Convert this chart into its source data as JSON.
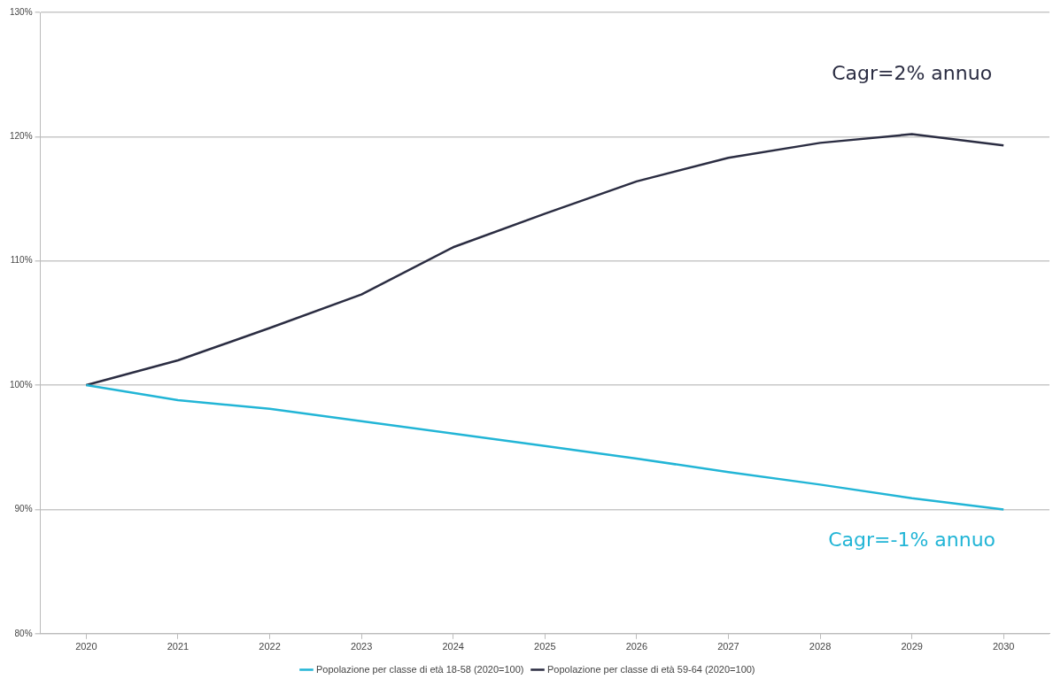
{
  "chart_data": {
    "type": "line",
    "categories": [
      "2020",
      "2021",
      "2022",
      "2023",
      "2024",
      "2025",
      "2026",
      "2027",
      "2028",
      "2029",
      "2030"
    ],
    "series": [
      {
        "name": "Popolazione per classe di età 18-58 (2020=100)",
        "color": "#22b5d6",
        "values": [
          100,
          98.8,
          98.1,
          97.1,
          96.1,
          95.1,
          94.1,
          93.0,
          92.0,
          90.9,
          90.0
        ]
      },
      {
        "name": "Popolazione per classe di età 59-64 (2020=100)",
        "color": "#2b2d42",
        "values": [
          100,
          102.0,
          104.6,
          107.3,
          111.1,
          113.8,
          116.4,
          118.3,
          119.5,
          120.2,
          119.3
        ]
      }
    ],
    "ylim": [
      80,
      130
    ],
    "yticks": [
      {
        "value": 80,
        "label": "80%"
      },
      {
        "value": 90,
        "label": "90%"
      },
      {
        "value": 100,
        "label": "100%"
      },
      {
        "value": 110,
        "label": "110%"
      },
      {
        "value": 120,
        "label": "120%"
      },
      {
        "value": 130,
        "label": "130%"
      }
    ],
    "grid": "y",
    "legend": "bottom",
    "marker": "none",
    "line_style": "solid",
    "annotations": [
      "Cagr=2% annuo",
      "Cagr=-1% annuo"
    ]
  }
}
